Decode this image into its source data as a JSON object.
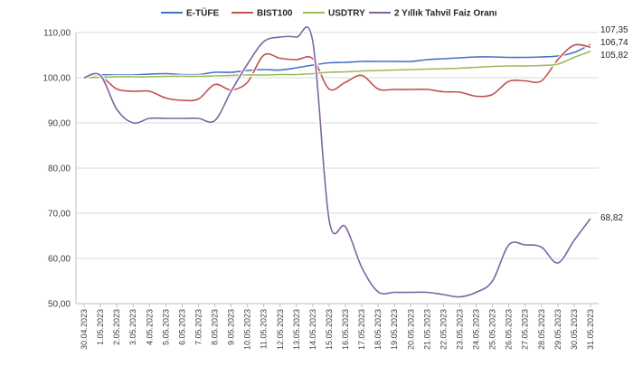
{
  "chart_data": {
    "type": "line",
    "title": "",
    "xlabel": "",
    "ylabel": "",
    "ylim": [
      50,
      110
    ],
    "yticks": [
      "50,00",
      "60,00",
      "70,00",
      "80,00",
      "90,00",
      "100,00",
      "110,00"
    ],
    "grid": true,
    "legend": "top",
    "categories": [
      "30.04.2023",
      "1.05.2023",
      "2.05.2023",
      "3.05.2023",
      "4.05.2023",
      "5.05.2023",
      "6.05.2023",
      "7.05.2023",
      "8.05.2023",
      "9.05.2023",
      "10.05.2023",
      "11.05.2023",
      "12.05.2023",
      "13.05.2023",
      "14.05.2023",
      "15.05.2023",
      "16.05.2023",
      "17.05.2023",
      "18.05.2023",
      "19.05.2023",
      "20.05.2023",
      "21.05.2023",
      "22.05.2023",
      "23.05.2023",
      "24.05.2023",
      "25.05.2023",
      "26.05.2023",
      "27.05.2023",
      "28.05.2023",
      "29.05.2023",
      "30.05.2023",
      "31.05.2023"
    ],
    "series": [
      {
        "name": "E-TÜFE",
        "color": "#4472c4",
        "values": [
          100.0,
          100.6,
          100.6,
          100.6,
          100.8,
          100.9,
          100.7,
          100.7,
          101.2,
          101.2,
          101.6,
          101.8,
          101.7,
          102.2,
          102.8,
          103.3,
          103.4,
          103.6,
          103.6,
          103.6,
          103.6,
          104.0,
          104.2,
          104.4,
          104.6,
          104.6,
          104.5,
          104.5,
          104.6,
          104.8,
          105.6,
          107.35
        ]
      },
      {
        "name": "BIST100",
        "color": "#c0504d",
        "values": [
          100.0,
          100.3,
          97.5,
          97.0,
          97.0,
          95.5,
          95.0,
          95.3,
          98.5,
          97.3,
          99.0,
          105.0,
          104.3,
          104.0,
          104.2,
          97.5,
          99.0,
          100.5,
          97.5,
          97.4,
          97.4,
          97.4,
          96.9,
          96.8,
          95.9,
          96.3,
          99.2,
          99.3,
          99.3,
          104.0,
          107.2,
          106.74
        ]
      },
      {
        "name": "USDTRY",
        "color": "#9bbb59",
        "values": [
          100.0,
          100.1,
          100.2,
          100.2,
          100.2,
          100.3,
          100.3,
          100.3,
          100.4,
          100.5,
          100.6,
          100.6,
          100.7,
          100.7,
          100.9,
          101.2,
          101.3,
          101.5,
          101.6,
          101.7,
          101.8,
          101.9,
          102.0,
          102.1,
          102.3,
          102.5,
          102.6,
          102.6,
          102.7,
          103.0,
          104.5,
          105.82
        ]
      },
      {
        "name": "2 Yıllık Tahvil Faiz Oranı",
        "color": "#8064a2",
        "values": [
          100.0,
          100.5,
          93.0,
          90.0,
          91.0,
          91.0,
          91.0,
          91.0,
          90.5,
          97.0,
          103.0,
          108.0,
          109.0,
          109.0,
          108.0,
          68.5,
          67.0,
          58.0,
          52.6,
          52.5,
          52.5,
          52.5,
          52.0,
          51.5,
          52.5,
          55.0,
          63.0,
          63.0,
          62.5,
          59.0,
          64.0,
          68.82
        ]
      }
    ],
    "end_labels": [
      "107,35",
      "106,74",
      "105,82",
      "68,82"
    ]
  }
}
